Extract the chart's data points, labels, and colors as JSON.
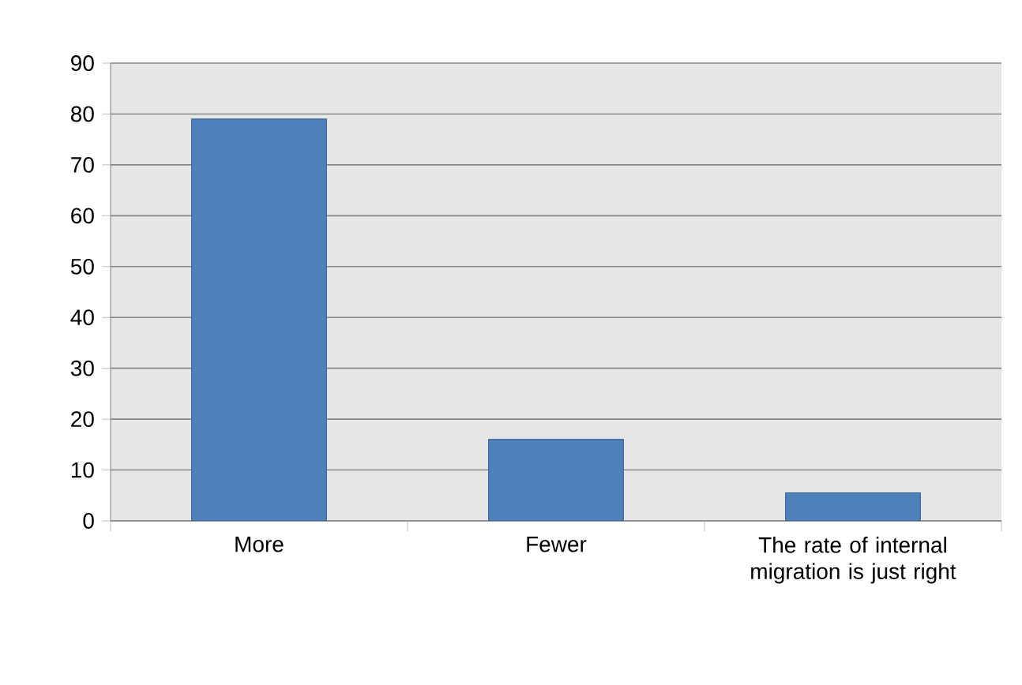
{
  "chart_data": {
    "type": "bar",
    "categories": [
      "More",
      "Fewer",
      "The rate of internal migration is just right"
    ],
    "values": [
      79,
      16,
      5.5
    ],
    "color": "#4f81bd",
    "ylim": [
      0,
      90
    ],
    "yticks": [
      0,
      10,
      20,
      30,
      40,
      50,
      60,
      70,
      80,
      90
    ],
    "grid": "y"
  }
}
